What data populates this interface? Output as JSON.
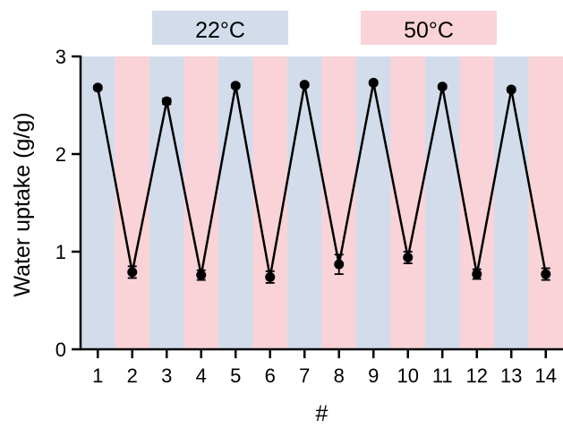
{
  "chart_data": {
    "type": "line",
    "title": "",
    "xlabel": "#",
    "ylabel": "Water uptake (g/g)",
    "ylim": [
      0,
      3
    ],
    "yticks": [
      0,
      1,
      2,
      3
    ],
    "x": [
      1,
      2,
      3,
      4,
      5,
      6,
      7,
      8,
      9,
      10,
      11,
      12,
      13,
      14
    ],
    "series": [
      {
        "values": [
          2.68,
          0.79,
          2.54,
          0.76,
          2.7,
          0.74,
          2.71,
          0.87,
          2.73,
          0.94,
          2.69,
          0.77,
          2.66,
          0.77
        ],
        "error": [
          0.02,
          0.06,
          0.03,
          0.05,
          0.02,
          0.06,
          0.02,
          0.1,
          0.02,
          0.06,
          0.02,
          0.05,
          0.02,
          0.06
        ]
      }
    ],
    "band_pattern": [
      "22°C",
      "50°C"
    ],
    "legend": {
      "placement": "top-center",
      "items": [
        {
          "label": "22°C",
          "color": "#d3dceb"
        },
        {
          "label": "50°C",
          "color": "#f9d3d7"
        }
      ]
    },
    "colors": {
      "cool_band": "#d3dceb",
      "warm_band": "#f9d3d7",
      "line": "#000000"
    },
    "grid": false
  }
}
